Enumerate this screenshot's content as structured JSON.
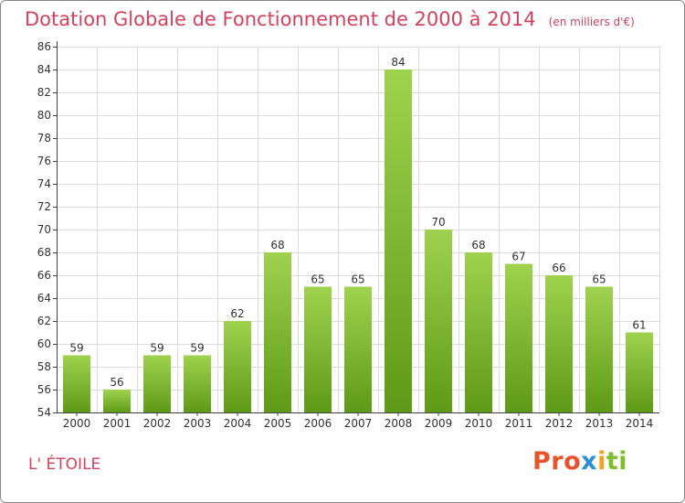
{
  "header": {
    "title": "Dotation Globale de Fonctionnement de 2000 à 2014",
    "unit": "(en milliers d'€)"
  },
  "footer": {
    "commune": "L' ÉTOILE",
    "brand_parts": [
      "Pro",
      "x",
      "i",
      "ti"
    ]
  },
  "colors": {
    "title": "#d3415c",
    "bar_top": "#9fd24f",
    "bar_bottom": "#5e9a17",
    "grid": "#dcdcdc",
    "axis": "#444444"
  },
  "chart_data": {
    "type": "bar",
    "title": "Dotation Globale de Fonctionnement de 2000 à 2014",
    "xlabel": "",
    "ylabel": "",
    "categories": [
      "2000",
      "2001",
      "2002",
      "2003",
      "2004",
      "2005",
      "2006",
      "2007",
      "2008",
      "2009",
      "2010",
      "2011",
      "2012",
      "2013",
      "2014"
    ],
    "values": [
      59,
      56,
      59,
      59,
      62,
      68,
      65,
      65,
      84,
      70,
      68,
      67,
      66,
      65,
      61
    ],
    "ylim": [
      54,
      86
    ],
    "ytick_step": 2,
    "grid": true,
    "legend": "none"
  }
}
